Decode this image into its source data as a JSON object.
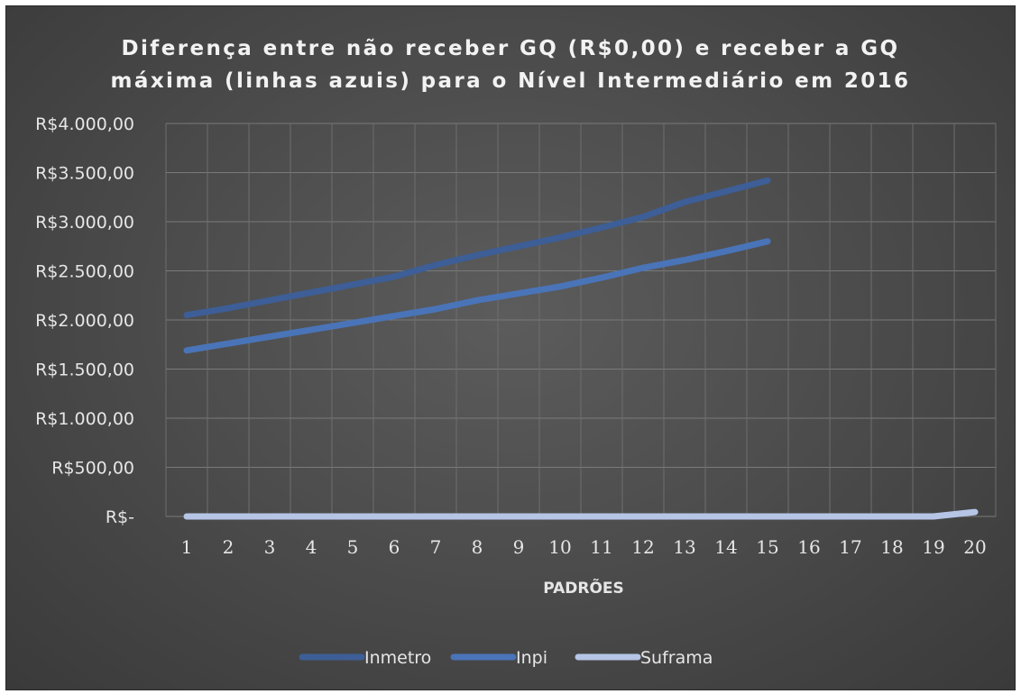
{
  "chart_data": {
    "type": "line",
    "title_lines": [
      "Diferença entre não receber GQ (R$0,00) e receber a GQ",
      "máxima (linhas azuis) para o Nível Intermediário em 2016"
    ],
    "xlabel": "PADRÕES",
    "ylabel": "",
    "categories": [
      "1",
      "2",
      "3",
      "4",
      "5",
      "6",
      "7",
      "8",
      "9",
      "10",
      "11",
      "12",
      "13",
      "14",
      "15",
      "16",
      "17",
      "18",
      "19",
      "20"
    ],
    "ylim": [
      0,
      4000
    ],
    "y_ticks": [
      0,
      500,
      1000,
      1500,
      2000,
      2500,
      3000,
      3500,
      4000
    ],
    "y_tick_labels": [
      "R$-",
      "R$500,00",
      "R$1.000,00",
      "R$1.500,00",
      "R$2.000,00",
      "R$2.500,00",
      "R$3.000,00",
      "R$3.500,00",
      "R$4.000,00"
    ],
    "grid": true,
    "legend_position": "bottom",
    "series": [
      {
        "name": "Inmetro",
        "color": "#3d5e96",
        "values": [
          2050,
          2120,
          2200,
          2280,
          2360,
          2440,
          2560,
          2660,
          2750,
          2840,
          2940,
          3050,
          3200,
          3310,
          3420,
          null,
          null,
          null,
          null,
          null
        ]
      },
      {
        "name": "Inpi",
        "color": "#4a74b8",
        "values": [
          1690,
          1760,
          1830,
          1900,
          1970,
          2040,
          2110,
          2200,
          2270,
          2340,
          2430,
          2530,
          2610,
          2700,
          2800,
          null,
          null,
          null,
          null,
          null
        ]
      },
      {
        "name": "Suframa",
        "color": "#b6c5e6",
        "values": [
          0,
          0,
          0,
          0,
          0,
          0,
          0,
          0,
          0,
          0,
          0,
          0,
          0,
          0,
          0,
          0,
          0,
          0,
          0,
          45
        ]
      }
    ]
  }
}
